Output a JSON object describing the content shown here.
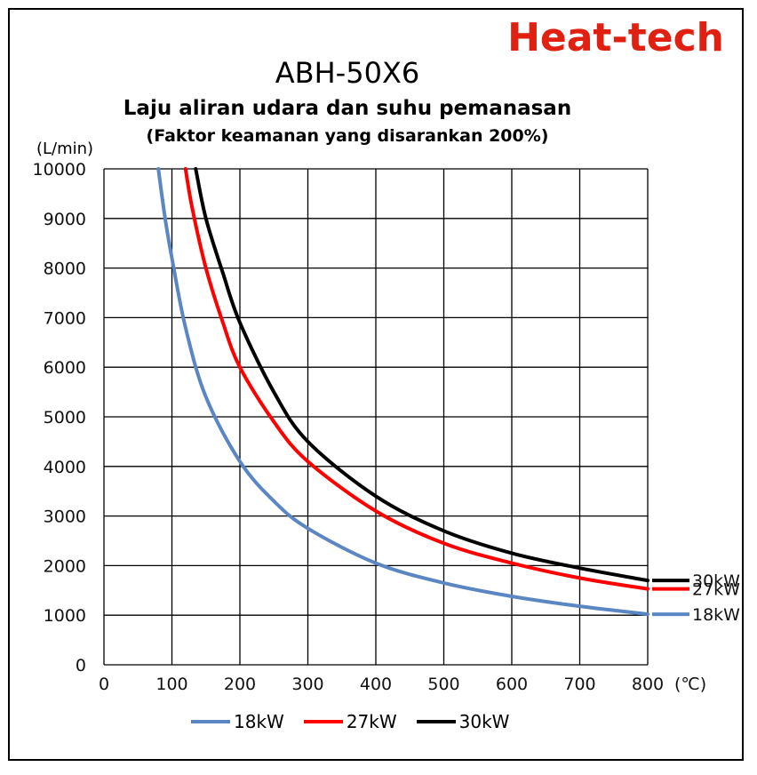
{
  "brand": {
    "text": "Heat-tech",
    "color": "#e02010"
  },
  "chart_data": {
    "type": "line",
    "title": "ABH-50X6",
    "subtitle": "Laju aliran udara dan suhu pemanasan",
    "subtitle2": "(Faktor keamanan yang disarankan 200%)",
    "ylabel": "(L/min)",
    "xunit": "(℃)",
    "xlim": [
      0,
      800
    ],
    "ylim": [
      0,
      10000
    ],
    "xticks": [
      0,
      100,
      200,
      300,
      400,
      500,
      600,
      700,
      800
    ],
    "yticks": [
      0,
      1000,
      2000,
      3000,
      4000,
      5000,
      6000,
      7000,
      8000,
      9000,
      10000
    ],
    "grid": true,
    "legend_position": "bottom",
    "series": [
      {
        "name": "18kW",
        "color": "#5b86c4",
        "end_label": "18kW",
        "x": [
          80,
          90,
          100,
          120,
          150,
          200,
          250,
          300,
          400,
          500,
          600,
          700,
          800
        ],
        "y": [
          10000,
          9000,
          8200,
          6800,
          5400,
          4100,
          3300,
          2750,
          2050,
          1650,
          1380,
          1180,
          1020
        ]
      },
      {
        "name": "27kW",
        "color": "#ff0000",
        "end_label": "27kW",
        "x": [
          120,
          130,
          150,
          175,
          200,
          250,
          300,
          400,
          500,
          600,
          700,
          800
        ],
        "y": [
          10000,
          9200,
          8000,
          6900,
          6000,
          4900,
          4100,
          3100,
          2450,
          2050,
          1750,
          1530
        ]
      },
      {
        "name": "30kW",
        "color": "#000000",
        "end_label": "30kW",
        "x": [
          135,
          150,
          175,
          200,
          250,
          300,
          400,
          500,
          600,
          700,
          800
        ],
        "y": [
          10000,
          9000,
          7900,
          6900,
          5500,
          4500,
          3400,
          2700,
          2250,
          1950,
          1700
        ]
      }
    ]
  }
}
